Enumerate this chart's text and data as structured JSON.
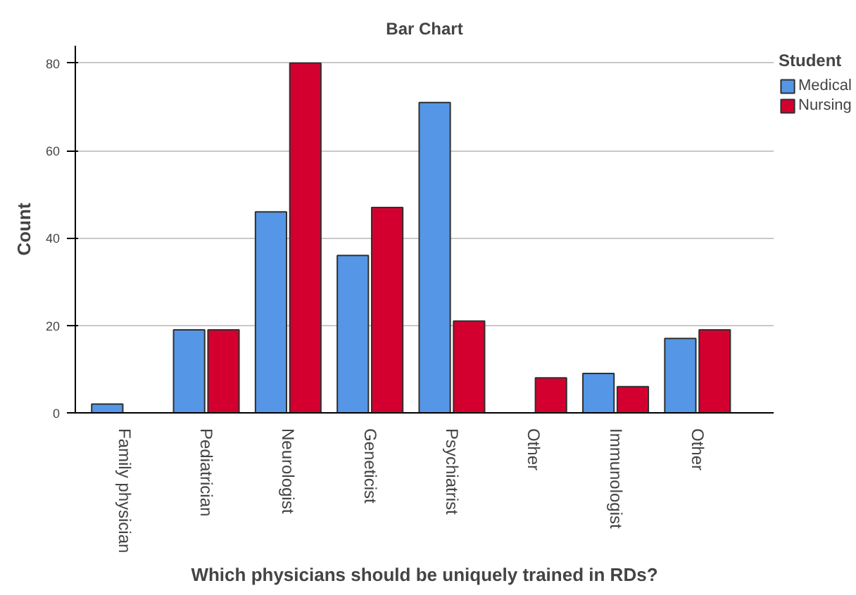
{
  "chart_data": {
    "type": "bar",
    "title": "Bar Chart",
    "xlabel": "Which physicians should be uniquely trained in RDs?",
    "ylabel": "Count",
    "legend_title": "Student",
    "categories": [
      "Family physician",
      "Pediatrician",
      "Neurologist",
      "Geneticist",
      "Psychiatrist",
      "Other",
      "Immunologist",
      "Other"
    ],
    "series": [
      {
        "name": "Medical",
        "color": "#5596e6",
        "values": [
          2,
          19,
          46,
          36,
          71,
          null,
          9,
          17
        ]
      },
      {
        "name": "Nursing",
        "color": "#d3002f",
        "values": [
          null,
          19,
          80,
          47,
          21,
          8,
          6,
          19
        ]
      }
    ],
    "ylim": [
      0,
      84
    ],
    "yticks": [
      0,
      20,
      40,
      60,
      80
    ],
    "grid": "y",
    "legend": "top right"
  }
}
